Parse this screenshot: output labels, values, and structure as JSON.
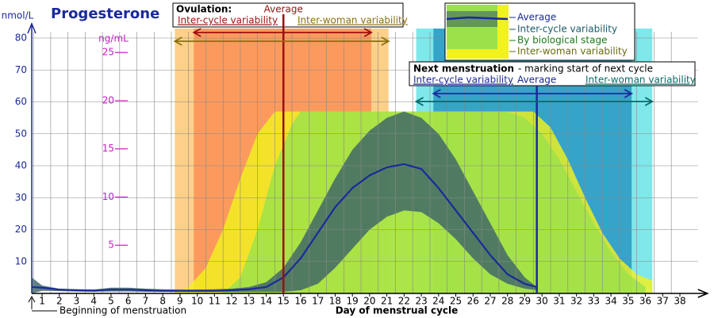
{
  "chart_data": {
    "type": "area",
    "title": "Progesterone",
    "y_label": "nmol/L",
    "y2_label": "ng/mL",
    "x_label": "Day of menstrual cycle",
    "start_note": "Beginning of menstruation",
    "xlim": [
      0.4,
      39.6
    ],
    "xticks": [
      1,
      2,
      3,
      4,
      5,
      6,
      7,
      8,
      9,
      10,
      11,
      12,
      13,
      14,
      15,
      16,
      17,
      18,
      19,
      20,
      21,
      22,
      23,
      24,
      25,
      26,
      27,
      28,
      29,
      30,
      31,
      32,
      33,
      34,
      35,
      36,
      37,
      38
    ],
    "ylim": [
      0,
      80
    ],
    "yticks": [
      10,
      20,
      30,
      40,
      50,
      60,
      70,
      80
    ],
    "y2lim": [
      0,
      26.5
    ],
    "y2ticks": [
      5,
      10,
      15,
      20,
      25
    ],
    "grid": true,
    "series": [
      {
        "name": "Inter-woman variability",
        "color": "#f2f21e",
        "x": [
          8.6,
          9.5,
          10.5,
          11.5,
          12.5,
          13.5,
          14.5,
          29.5,
          30.5,
          31.5,
          32.5,
          33.5,
          34.5,
          35.5,
          36.4
        ],
        "upper": [
          0,
          2,
          8,
          20,
          36,
          50,
          57,
          57,
          52,
          42,
          30,
          19,
          11,
          6,
          4
        ]
      },
      {
        "name": "By biological stage",
        "color": "#9be24a",
        "x": [
          11.5,
          12.5,
          13.5,
          14.5,
          15.5,
          16,
          28,
          29,
          30,
          31,
          32,
          33,
          34,
          35,
          36
        ],
        "upper": [
          0,
          5,
          20,
          40,
          53,
          57,
          57,
          55,
          50,
          42,
          32,
          22,
          13,
          6,
          2
        ]
      },
      {
        "name": "Inter-cycle variability",
        "color": "#3d6468",
        "x": [
          0.4,
          1,
          2,
          3,
          4,
          5,
          6,
          7,
          8,
          9,
          10,
          11,
          12,
          13,
          14,
          15,
          16,
          17,
          18,
          19,
          20,
          21,
          22,
          23,
          24,
          25,
          26,
          27,
          28,
          29,
          29.7
        ],
        "upper": [
          5,
          2.5,
          1.5,
          1.3,
          1.2,
          1.8,
          1.8,
          1.5,
          1.3,
          1.2,
          1.2,
          1.3,
          1.5,
          2,
          3.5,
          8,
          16,
          26,
          36,
          45,
          51,
          55,
          57,
          55,
          50,
          42,
          32,
          22,
          12,
          5,
          2
        ],
        "lower": [
          0,
          0.8,
          0.7,
          0.6,
          0.5,
          0.6,
          0.6,
          0.5,
          0.5,
          0.5,
          0.5,
          0.5,
          0.5,
          0.5,
          0.5,
          0.5,
          1,
          3,
          8,
          14,
          20,
          24,
          26,
          25.5,
          22,
          17,
          11,
          6,
          3,
          1.5,
          1
        ]
      },
      {
        "name": "Average",
        "color": "#1a2a9a",
        "line": true,
        "x": [
          0.4,
          1,
          2,
          3,
          4,
          5,
          6,
          7,
          8,
          9,
          10,
          11,
          12,
          13,
          14,
          15,
          16,
          17,
          18,
          19,
          20,
          21,
          22,
          23,
          24,
          25,
          26,
          27,
          28,
          29,
          29.7
        ],
        "values": [
          2,
          1.8,
          1.2,
          1,
          0.9,
          1.2,
          1.2,
          1,
          0.8,
          0.8,
          0.8,
          0.8,
          1,
          1.3,
          2,
          5,
          11,
          19,
          27,
          33,
          37,
          39.5,
          40.5,
          39,
          33,
          26,
          19,
          12,
          6,
          3,
          2
        ]
      }
    ],
    "ovulation": {
      "title": "Ovulation:",
      "average_label": "Average",
      "average_day": 15,
      "average_color": "#9a1010",
      "inter_cycle_label": "Inter-cycle variability",
      "inter_cycle_range": [
        9.8,
        20.1
      ],
      "inter_cycle_color": "#fc9a5e",
      "inter_cycle_text_color": "#9a1010",
      "inter_woman_label": "Inter-woman variability",
      "inter_woman_range": [
        8.7,
        21.1
      ],
      "inter_woman_color": "#fdd08a",
      "inter_woman_text_color": "#8a7010"
    },
    "next_menstruation": {
      "title": "Next menstruation",
      "subtitle": "- marking start of next cycle",
      "average_label": "Average",
      "average_day": 29.7,
      "average_color": "#1a2a9a",
      "inter_cycle_label": "Inter-cycle variability",
      "inter_cycle_range": [
        23.7,
        35.2
      ],
      "inter_cycle_color": "#36a3c8",
      "inter_cycle_text_color": "#1a2a9a",
      "inter_woman_label": "Inter-woman variability",
      "inter_woman_range": [
        22.7,
        36.4
      ],
      "inter_woman_color": "#7ee8ea",
      "inter_woman_text_color": "#0a6a6a"
    }
  }
}
